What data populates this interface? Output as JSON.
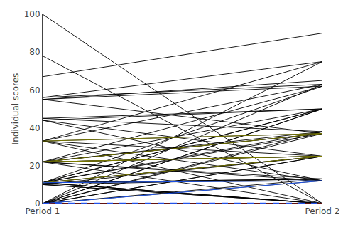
{
  "chart_data": {
    "type": "line",
    "categories": [
      "Period 1",
      "Period 2"
    ],
    "ylabel": "Individual scores",
    "ylim": [
      0,
      100
    ],
    "yticks": [
      0,
      20,
      40,
      60,
      80,
      100
    ],
    "grid": false,
    "series": [
      {
        "color": "black",
        "values": [
          100,
          0
        ]
      },
      {
        "color": "black",
        "values": [
          78,
          0
        ]
      },
      {
        "color": "black",
        "values": [
          67,
          90
        ]
      },
      {
        "color": "black",
        "values": [
          56,
          75
        ]
      },
      {
        "color": "black",
        "values": [
          56,
          63
        ]
      },
      {
        "color": "black",
        "values": [
          55,
          65
        ]
      },
      {
        "color": "black",
        "values": [
          45,
          50
        ]
      },
      {
        "color": "black",
        "values": [
          45,
          38
        ]
      },
      {
        "color": "black",
        "values": [
          33,
          75
        ]
      },
      {
        "color": "black",
        "values": [
          33,
          63
        ]
      },
      {
        "color": "black",
        "values": [
          22,
          50
        ]
      },
      {
        "color": "black",
        "values": [
          22,
          38
        ]
      },
      {
        "color": "black",
        "values": [
          22,
          25
        ]
      },
      {
        "color": "black",
        "values": [
          22,
          25
        ]
      },
      {
        "color": "black",
        "values": [
          22,
          13
        ]
      },
      {
        "color": "black",
        "values": [
          11,
          50
        ]
      },
      {
        "color": "black",
        "values": [
          11,
          38
        ]
      },
      {
        "color": "black",
        "values": [
          11,
          25
        ]
      },
      {
        "color": "black",
        "values": [
          11,
          13
        ]
      },
      {
        "color": "black",
        "values": [
          11,
          13
        ]
      },
      {
        "color": "black",
        "values": [
          11,
          0
        ]
      },
      {
        "color": "black",
        "values": [
          11,
          0
        ]
      },
      {
        "color": "black",
        "values": [
          10,
          25
        ]
      },
      {
        "color": "black",
        "values": [
          10,
          13
        ]
      },
      {
        "color": "black",
        "values": [
          10,
          0
        ]
      },
      {
        "color": "black",
        "values": [
          10,
          0
        ]
      },
      {
        "color": "black",
        "values": [
          0,
          75
        ]
      },
      {
        "color": "black",
        "values": [
          0,
          63
        ]
      },
      {
        "color": "black",
        "values": [
          0,
          50
        ]
      },
      {
        "color": "black",
        "values": [
          0,
          38
        ]
      },
      {
        "color": "black",
        "values": [
          0,
          25
        ]
      },
      {
        "color": "black",
        "values": [
          0,
          13
        ]
      },
      {
        "color": "black",
        "values": [
          0,
          0
        ]
      },
      {
        "color": "black",
        "values": [
          0,
          0
        ]
      },
      {
        "color": "black",
        "values": [
          0,
          0
        ]
      },
      {
        "color": "black",
        "values": [
          0,
          0
        ]
      },
      {
        "color": "black",
        "values": [
          0,
          0
        ]
      },
      {
        "color": "black",
        "values": [
          33,
          12
        ]
      },
      {
        "color": "black",
        "values": [
          44,
          25
        ]
      },
      {
        "color": "black",
        "values": [
          55,
          37
        ]
      },
      {
        "color": "black",
        "values": [
          22,
          37
        ]
      },
      {
        "color": "black",
        "values": [
          11,
          12
        ]
      },
      {
        "color": "black",
        "values": [
          0,
          12
        ]
      },
      {
        "color": "black",
        "values": [
          0,
          0
        ]
      },
      {
        "color": "black",
        "values": [
          11,
          0
        ]
      },
      {
        "color": "black",
        "values": [
          22,
          12
        ]
      },
      {
        "color": "black",
        "values": [
          33,
          37
        ]
      },
      {
        "color": "black",
        "values": [
          44,
          50
        ]
      },
      {
        "color": "black",
        "values": [
          55,
          62
        ]
      },
      {
        "color": "black",
        "values": [
          11,
          37
        ]
      },
      {
        "color": "black",
        "values": [
          22,
          0
        ]
      },
      {
        "color": "black",
        "values": [
          0,
          25
        ]
      },
      {
        "color": "black",
        "values": [
          11,
          25
        ]
      },
      {
        "color": "black",
        "values": [
          22,
          25
        ]
      },
      {
        "color": "black",
        "values": [
          33,
          0
        ]
      },
      {
        "color": "black",
        "values": [
          44,
          12
        ]
      },
      {
        "color": "black",
        "values": [
          11,
          62
        ]
      },
      {
        "color": "black",
        "values": [
          0,
          37
        ]
      },
      {
        "color": "black",
        "values": [
          22,
          62
        ]
      },
      {
        "color": "black",
        "values": [
          11,
          50
        ]
      },
      {
        "color": "black",
        "values": [
          0,
          50
        ]
      },
      {
        "color": "black",
        "values": [
          22,
          37
        ]
      },
      {
        "color": "black",
        "values": [
          33,
          25
        ]
      },
      {
        "color": "#808000",
        "values": [
          22,
          25
        ]
      },
      {
        "color": "#808000",
        "values": [
          22,
          37
        ]
      },
      {
        "color": "#808000",
        "values": [
          33,
          37
        ]
      },
      {
        "color": "#808000",
        "values": [
          11,
          25
        ]
      },
      {
        "color": "#808000",
        "values": [
          22,
          25
        ]
      },
      {
        "color": "#1e5aff",
        "values": [
          11,
          12
        ]
      },
      {
        "color": "#1e5aff",
        "values": [
          0,
          12
        ]
      },
      {
        "color": "#cc2222",
        "values": [
          0,
          0
        ]
      },
      {
        "color": "#1e5aff",
        "line_style": "dashed",
        "values": [
          0,
          0
        ]
      }
    ]
  }
}
